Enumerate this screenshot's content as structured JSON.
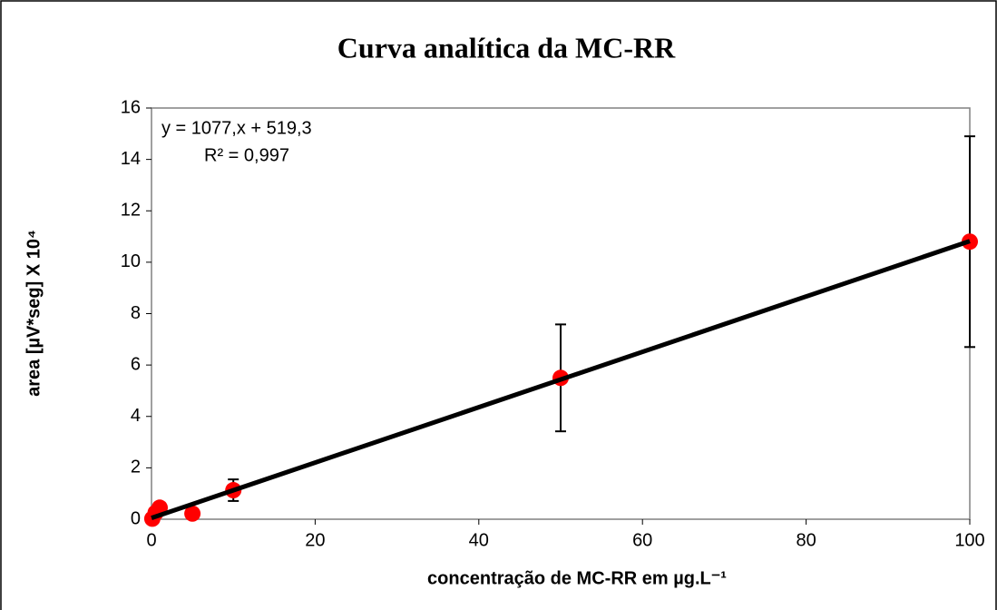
{
  "chart_data": {
    "type": "scatter",
    "title": "Curva analítica da MC-RR",
    "x_label": "concentração  de MC-RR em µg.L⁻¹",
    "y_label": "area [µV*seg] X 10⁴",
    "annotations": [
      "y = 1077,x + 519,3",
      "R² = 0,997"
    ],
    "series": [
      {
        "name": "MC-RR",
        "color": "#ff0000",
        "x": [
          0.1,
          0.5,
          1,
          5,
          10,
          50,
          100
        ],
        "values": [
          0.02,
          0.25,
          0.45,
          0.22,
          1.13,
          5.5,
          10.8
        ],
        "errors": [
          null,
          null,
          null,
          null,
          0.42,
          2.08,
          4.1
        ]
      }
    ],
    "trendline": {
      "color": "#000000",
      "x": [
        0,
        100
      ],
      "values": [
        0.05,
        10.82
      ]
    },
    "xlim": [
      0,
      100
    ],
    "xticks": [
      0,
      20,
      40,
      60,
      80,
      100
    ],
    "ylim": [
      0,
      16
    ],
    "yticks": [
      0,
      2,
      4,
      6,
      8,
      10,
      12,
      14,
      16
    ],
    "grid": false
  }
}
